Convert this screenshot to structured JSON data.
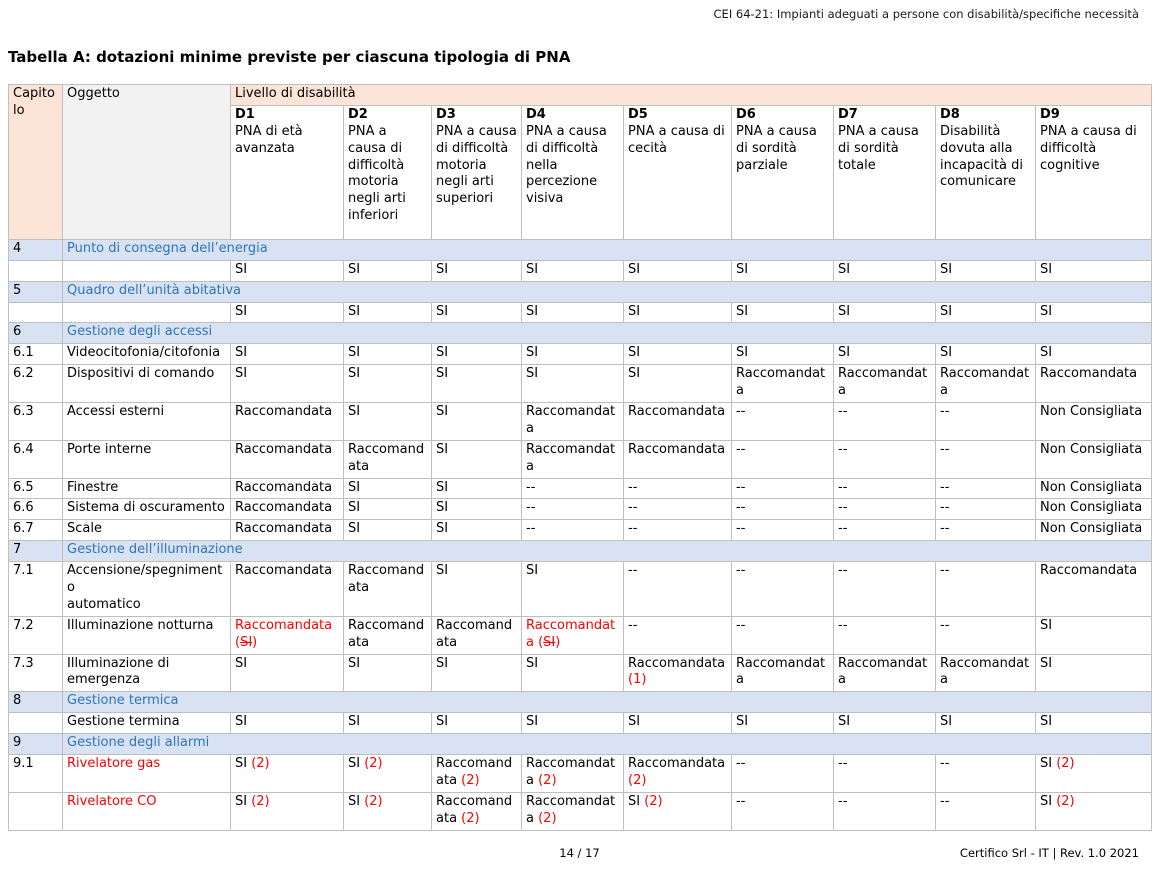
{
  "page": {
    "header_right": "CEI 64-21: Impianti adeguati a persone con disabilità/specifiche necessità",
    "title": "Tabella A: dotazioni minime previste per ciascuna tipologia di PNA",
    "footer_center": "14 / 17",
    "footer_right": "Certifico Srl - IT | Rev. 1.0 2021"
  },
  "colors": {
    "header_peach": "#FCE4D6",
    "corner_gray": "#F2F2F2",
    "section_bg": "#D9E2F3",
    "section_text": "#2E75B6",
    "highlight_red": "#FF0000",
    "grid_border": "#BFBFBF"
  },
  "table": {
    "corner_col1": "Capitolo",
    "corner_col2": "Oggetto",
    "level_header": "Livello di disabilità",
    "columns": [
      {
        "code": "D1",
        "desc": "PNA di età avanzata"
      },
      {
        "code": "D2",
        "desc": "PNA a causa di difficoltà motoria negli arti inferiori"
      },
      {
        "code": "D3",
        "desc": "PNA a causa di difficoltà motoria negli arti superiori"
      },
      {
        "code": "D4",
        "desc": "PNA a causa di difficoltà nella percezione visiva"
      },
      {
        "code": "D5",
        "desc": "PNA a causa di cecità"
      },
      {
        "code": "D6",
        "desc": "PNA a causa di sordità parziale"
      },
      {
        "code": "D7",
        "desc": "PNA a causa di sordità totale"
      },
      {
        "code": "D8",
        "desc": "Disabilità dovuta alla incapacità di comunicare"
      },
      {
        "code": "D9",
        "desc": "PNA a causa di difficoltà cognitive"
      }
    ],
    "rows": [
      {
        "type": "section",
        "num": "4",
        "title": "Punto di consegna dell’energia"
      },
      {
        "type": "data",
        "num": "",
        "label": "",
        "cells": [
          "SI",
          "SI",
          "SI",
          "SI",
          "SI",
          "SI",
          "SI",
          "SI",
          "SI"
        ]
      },
      {
        "type": "section",
        "num": "5",
        "title": "Quadro dell’unità abitativa"
      },
      {
        "type": "data",
        "num": "",
        "label": "",
        "cells": [
          "SI",
          "SI",
          "SI",
          "SI",
          "SI",
          "SI",
          "SI",
          "SI",
          "SI"
        ]
      },
      {
        "type": "section",
        "num": "6",
        "title": "Gestione degli accessi"
      },
      {
        "type": "data",
        "num": "6.1",
        "label": "Videocitofonia/citofonia",
        "cells": [
          "SI",
          "SI",
          "SI",
          "SI",
          "SI",
          "SI",
          "SI",
          "SI",
          "SI"
        ]
      },
      {
        "type": "data",
        "num": "6.2",
        "label": "Dispositivi di comando",
        "cells": [
          "SI",
          "SI",
          "SI",
          "SI",
          "SI",
          "Raccomandata",
          "Raccomandata",
          "Raccomandata",
          "Raccomandata"
        ]
      },
      {
        "type": "data",
        "num": "6.3",
        "label": "Accessi esterni",
        "cells": [
          "Raccomandata",
          "SI",
          "SI",
          "Raccomandata",
          "Raccomandata",
          "--",
          "--",
          "--",
          "Non Consigliata"
        ]
      },
      {
        "type": "data",
        "num": "6.4",
        "label": "Porte interne",
        "cells": [
          "Raccomandata",
          "Raccomandata",
          "SI",
          "Raccomandata",
          "Raccomandata",
          "--",
          "--",
          "--",
          "Non Consigliata"
        ]
      },
      {
        "type": "data",
        "num": "6.5",
        "label": "Finestre",
        "cells": [
          "Raccomandata",
          "SI",
          "SI",
          "--",
          "--",
          "--",
          "--",
          "--",
          "Non Consigliata"
        ]
      },
      {
        "type": "data",
        "num": "6.6",
        "label": "Sistema di oscuramento",
        "cells": [
          "Raccomandata",
          "SI",
          "SI",
          "--",
          "--",
          "--",
          "--",
          "--",
          "Non Consigliata"
        ]
      },
      {
        "type": "data",
        "num": "6.7",
        "label": "Scale",
        "cells": [
          "Raccomandata",
          "SI",
          "SI",
          "--",
          "--",
          "--",
          "--",
          "--",
          "Non Consigliata"
        ]
      },
      {
        "type": "section",
        "num": "7",
        "title": "Gestione dell’illuminazione"
      },
      {
        "type": "data",
        "num": "7.1",
        "label": "Accensione/spegnimento\nautomatico",
        "cells": [
          "Raccomandata",
          "Raccomandata",
          "SI",
          "SI",
          "--",
          "--",
          "--",
          "--",
          "Raccomandata"
        ]
      },
      {
        "type": "data",
        "num": "7.2",
        "label": "Illuminazione notturna",
        "cells": [
          {
            "runs": [
              {
                "t": "Raccomandata (",
                "c": "red"
              },
              {
                "t": "SI",
                "c": "red",
                "strike": true
              },
              {
                "t": ")",
                "c": "red"
              }
            ]
          },
          "Raccomandata",
          "Raccomandata",
          {
            "runs": [
              {
                "t": "Raccomandata (",
                "c": "red"
              },
              {
                "t": "SI",
                "c": "red",
                "strike": true
              },
              {
                "t": ")",
                "c": "red"
              }
            ]
          },
          "--",
          "--",
          "--",
          "--",
          "SI"
        ]
      },
      {
        "type": "data",
        "num": "7.3",
        "label": "Illuminazione di emergenza",
        "cells": [
          "SI",
          "SI",
          "SI",
          "SI",
          {
            "runs": [
              {
                "t": "Raccomandata "
              },
              {
                "t": "(1)",
                "c": "red"
              }
            ]
          },
          "Raccomandata",
          "Raccomandata",
          "Raccomandata",
          "SI"
        ]
      },
      {
        "type": "section",
        "num": "8",
        "title": "Gestione termica"
      },
      {
        "type": "data",
        "num": "",
        "label": "Gestione termina",
        "cells": [
          "SI",
          "SI",
          "SI",
          "SI",
          "SI",
          "SI",
          "SI",
          "SI",
          "SI"
        ]
      },
      {
        "type": "section",
        "num": "9",
        "title": "Gestione degli allarmi"
      },
      {
        "type": "data",
        "num": "9.1",
        "label": {
          "runs": [
            {
              "t": "Rivelatore gas",
              "c": "red"
            }
          ]
        },
        "cells": [
          {
            "runs": [
              {
                "t": "SI "
              },
              {
                "t": "(2)",
                "c": "red"
              }
            ]
          },
          {
            "runs": [
              {
                "t": "SI "
              },
              {
                "t": "(2)",
                "c": "red"
              }
            ]
          },
          {
            "runs": [
              {
                "t": "Raccomandata "
              },
              {
                "t": "(2)",
                "c": "red"
              }
            ]
          },
          {
            "runs": [
              {
                "t": "Raccomandata "
              },
              {
                "t": "(2)",
                "c": "red"
              }
            ]
          },
          {
            "runs": [
              {
                "t": "Raccomandata "
              },
              {
                "t": "(2)",
                "c": "red"
              }
            ]
          },
          "--",
          "--",
          "--",
          {
            "runs": [
              {
                "t": "SI "
              },
              {
                "t": "(2)",
                "c": "red"
              }
            ]
          }
        ]
      },
      {
        "type": "data",
        "num": "",
        "label": {
          "runs": [
            {
              "t": "Rivelatore CO",
              "c": "red"
            }
          ]
        },
        "cells": [
          {
            "runs": [
              {
                "t": "SI "
              },
              {
                "t": "(2)",
                "c": "red"
              }
            ]
          },
          {
            "runs": [
              {
                "t": "SI "
              },
              {
                "t": "(2)",
                "c": "red"
              }
            ]
          },
          {
            "runs": [
              {
                "t": "Raccomandata "
              },
              {
                "t": "(2)",
                "c": "red"
              }
            ]
          },
          {
            "runs": [
              {
                "t": "Raccomandata "
              },
              {
                "t": "(2)",
                "c": "red"
              }
            ]
          },
          {
            "runs": [
              {
                "t": "SI "
              },
              {
                "t": "(2)",
                "c": "red"
              }
            ]
          },
          "--",
          "--",
          "--",
          {
            "runs": [
              {
                "t": "SI "
              },
              {
                "t": "(2)",
                "c": "red"
              }
            ]
          }
        ]
      }
    ]
  }
}
